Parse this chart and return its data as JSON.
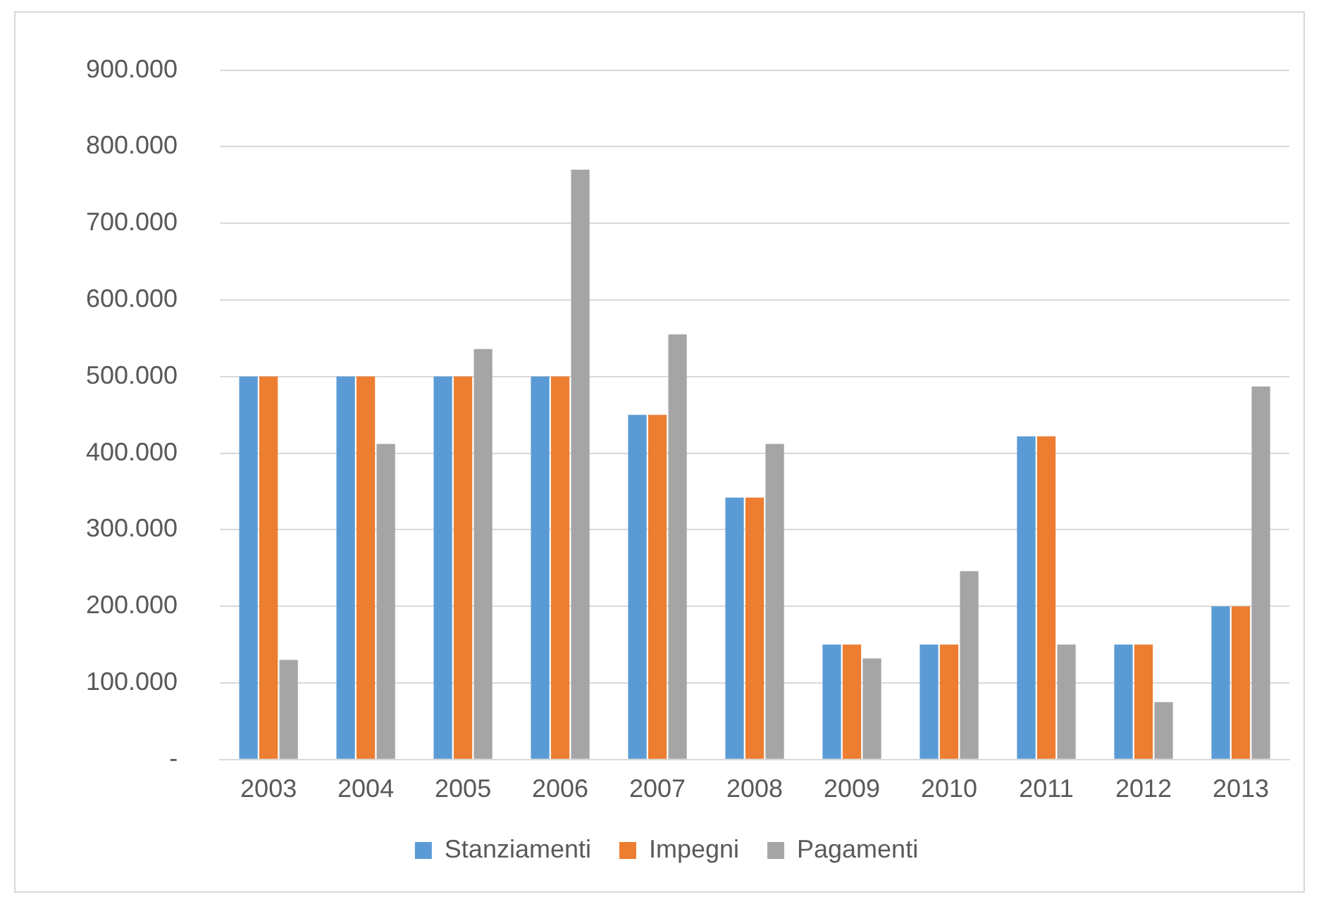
{
  "chart_data": {
    "type": "bar",
    "categories": [
      "2003",
      "2004",
      "2005",
      "2006",
      "2007",
      "2008",
      "2009",
      "2010",
      "2011",
      "2012",
      "2013"
    ],
    "series": [
      {
        "name": "Stanziamenti",
        "color": "#5b9bd5",
        "values": [
          500000,
          500000,
          500000,
          500000,
          450000,
          342000,
          150000,
          150000,
          422000,
          150000,
          200000
        ]
      },
      {
        "name": "Impegni",
        "color": "#ed7d31",
        "values": [
          500000,
          500000,
          500000,
          500000,
          450000,
          342000,
          150000,
          150000,
          422000,
          150000,
          200000
        ]
      },
      {
        "name": "Pagamenti",
        "color": "#a5a5a5",
        "values": [
          130000,
          412000,
          536000,
          770000,
          555000,
          412000,
          132000,
          246000,
          150000,
          75000,
          487000
        ]
      }
    ],
    "ylim": [
      0,
      900000
    ],
    "yticks": [
      {
        "value": 0,
        "label": "-"
      },
      {
        "value": 100000,
        "label": "100.000"
      },
      {
        "value": 200000,
        "label": "200.000"
      },
      {
        "value": 300000,
        "label": "300.000"
      },
      {
        "value": 400000,
        "label": "400.000"
      },
      {
        "value": 500000,
        "label": "500.000"
      },
      {
        "value": 600000,
        "label": "600.000"
      },
      {
        "value": 700000,
        "label": "700.000"
      },
      {
        "value": 800000,
        "label": "800.000"
      },
      {
        "value": 900000,
        "label": "900.000"
      }
    ],
    "grid": "y",
    "legend": "bottom"
  }
}
